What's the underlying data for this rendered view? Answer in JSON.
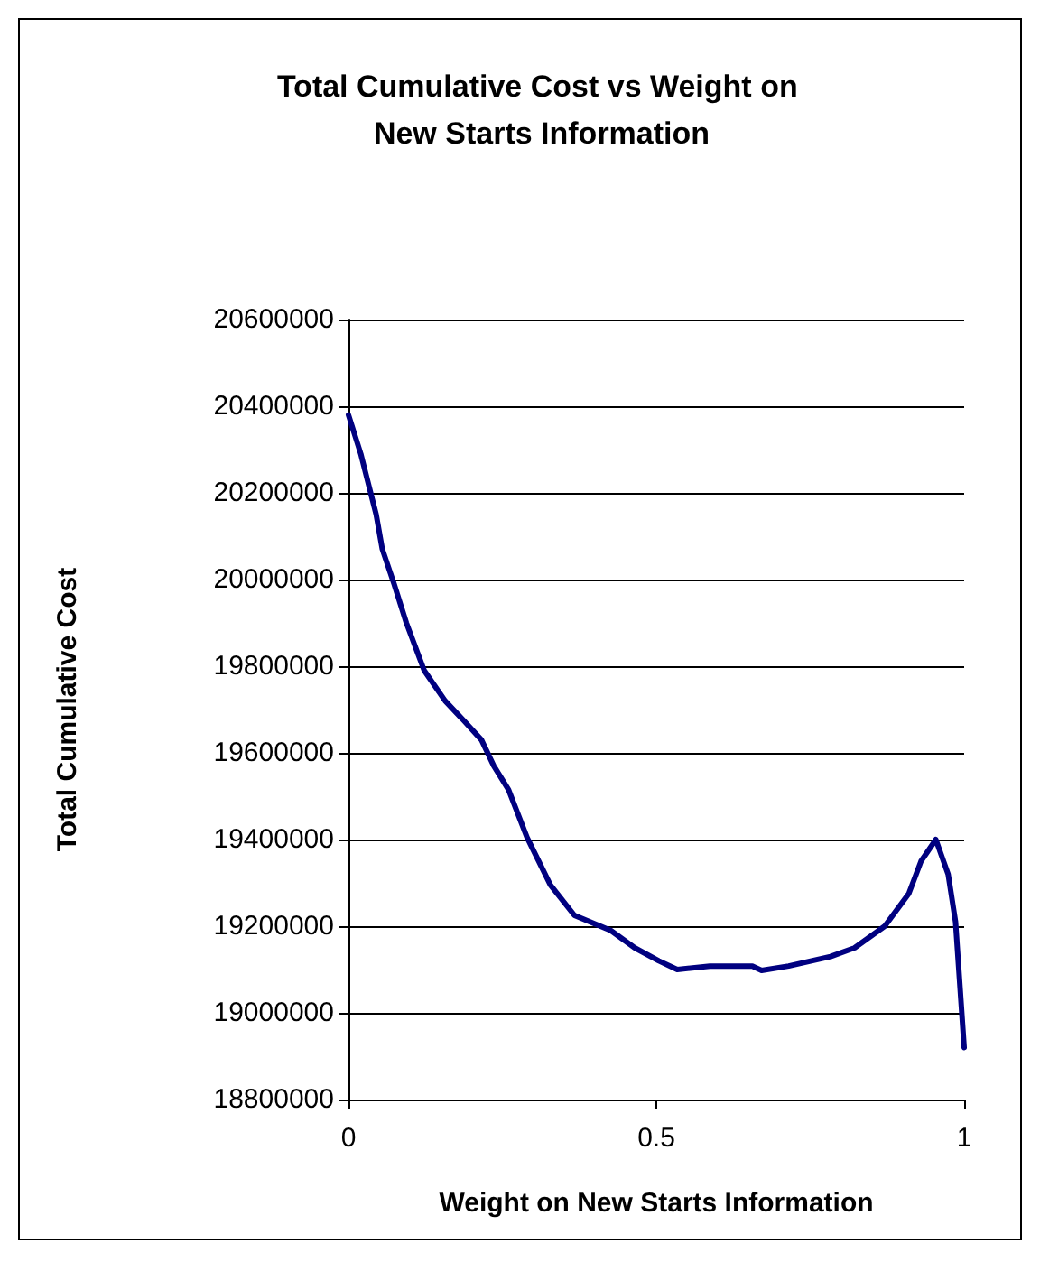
{
  "chart_data": {
    "type": "line",
    "title": "Total Cumulative Cost vs Weight on New Starts Information",
    "xlabel": "Weight on New Starts Information",
    "ylabel": "Total Cumulative Cost",
    "x": [
      0,
      0.02,
      0.045,
      0.055,
      0.074,
      0.094,
      0.123,
      0.157,
      0.187,
      0.216,
      0.236,
      0.26,
      0.29,
      0.328,
      0.367,
      0.426,
      0.465,
      0.504,
      0.534,
      0.587,
      0.656,
      0.671,
      0.715,
      0.783,
      0.822,
      0.871,
      0.91,
      0.93,
      0.954,
      0.974,
      0.986,
      1
    ],
    "series": [
      {
        "color": "#000080",
        "values": [
          20380000,
          20290000,
          20150000,
          20070000,
          19990000,
          19900000,
          19790000,
          19720000,
          19675000,
          19630000,
          19570000,
          19515000,
          19405000,
          19295000,
          19225000,
          19190000,
          19150000,
          19120000,
          19100000,
          19108000,
          19108000,
          19098000,
          19108000,
          19130000,
          19150000,
          19200000,
          19275000,
          19350000,
          19400000,
          19320000,
          19210000,
          18920000
        ]
      }
    ],
    "xlim": [
      0,
      1
    ],
    "xticks": [
      0,
      0.5,
      1
    ],
    "ylim": [
      18800000,
      20600000
    ],
    "yticks": [
      18800000,
      19000000,
      19200000,
      19400000,
      19600000,
      19800000,
      20000000,
      20200000,
      20400000,
      20600000
    ],
    "grid": "y",
    "marker": "none",
    "line_style": "solid"
  }
}
